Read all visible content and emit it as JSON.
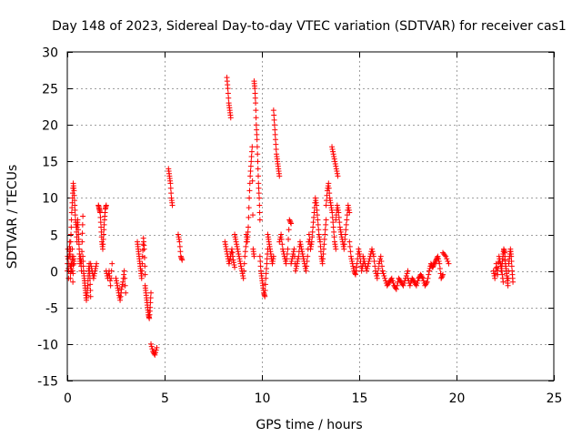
{
  "chart_data": {
    "type": "scatter",
    "title": "Day 148 of 2023, Sidereal Day-to-day VTEC variation (SDTVAR) for receiver cas1",
    "xlabel": "GPS time / hours",
    "ylabel": "SDTVAR / TECUs",
    "xlim": [
      0,
      25
    ],
    "ylim": [
      -15,
      30
    ],
    "xticks": [
      0,
      5,
      10,
      15,
      20,
      25
    ],
    "yticks": [
      -15,
      -10,
      -5,
      0,
      5,
      10,
      15,
      20,
      25,
      30
    ],
    "grid": true,
    "marker": "+",
    "series": [
      {
        "name": "SDTVAR",
        "color": "#ff0000",
        "segments": [
          {
            "x0": 0.0,
            "x1": 0.35,
            "y": [
              0,
              3,
              -1,
              2,
              4,
              -1,
              1,
              0,
              3,
              -1.5,
              2,
              1
            ]
          },
          {
            "x0": 0.15,
            "x1": 0.5,
            "y": [
              2,
              5,
              8,
              10,
              12,
              11,
              9,
              7,
              6,
              4
            ]
          },
          {
            "x0": 0.5,
            "x1": 0.8,
            "y": [
              6,
              7,
              5,
              3,
              1,
              2,
              0,
              4,
              7.5
            ]
          },
          {
            "x0": 0.8,
            "x1": 1.2,
            "y": [
              2,
              0,
              -1,
              -2,
              -3,
              -4,
              -3,
              -2,
              0,
              1,
              -1,
              -3.5
            ]
          },
          {
            "x0": 1.2,
            "x1": 1.5,
            "y": [
              1,
              0,
              -1,
              0,
              1
            ]
          },
          {
            "x0": 1.6,
            "x1": 2.0,
            "y": [
              9,
              8.5,
              8,
              6,
              4,
              3,
              5,
              7,
              8.5,
              9
            ]
          },
          {
            "x0": 2.0,
            "x1": 2.3,
            "y": [
              0,
              -1,
              0,
              -2,
              1
            ]
          },
          {
            "x0": 2.5,
            "x1": 3.0,
            "y": [
              -1,
              -2,
              -3,
              -4,
              -2.5,
              -1.5,
              0,
              -3
            ]
          },
          {
            "x0": 3.6,
            "x1": 4.0,
            "y": [
              4,
              3,
              2,
              1,
              0,
              -1,
              2,
              4.5,
              3,
              -0.5
            ]
          },
          {
            "x0": 4.0,
            "x1": 4.3,
            "y": [
              -2,
              -3,
              -4,
              -5,
              -6,
              -6.5,
              -5,
              -3
            ]
          },
          {
            "x0": 4.3,
            "x1": 4.6,
            "y": [
              -10,
              -11,
              -11.5,
              -10.5
            ]
          },
          {
            "x0": 5.2,
            "x1": 5.4,
            "y": [
              14,
              13,
              12,
              10,
              9
            ]
          },
          {
            "x0": 5.7,
            "x1": 5.9,
            "y": [
              5,
              4,
              2,
              1.5
            ]
          },
          {
            "x0": 8.1,
            "x1": 8.6,
            "y": [
              4,
              3,
              2,
              1,
              2,
              3,
              1.5,
              0.5
            ]
          },
          {
            "x0": 8.2,
            "x1": 8.4,
            "y": [
              26.5,
              25,
              23,
              22,
              21
            ]
          },
          {
            "x0": 8.6,
            "x1": 9.2,
            "y": [
              5,
              4,
              3,
              2,
              1,
              0,
              -1,
              2,
              4
            ]
          },
          {
            "x0": 9.2,
            "x1": 9.6,
            "y": [
              5,
              4,
              6,
              10,
              13,
              15,
              17,
              3,
              2
            ]
          },
          {
            "x0": 9.6,
            "x1": 9.9,
            "y": [
              26,
              25,
              23,
              20,
              18,
              15,
              12,
              10,
              7
            ]
          },
          {
            "x0": 9.9,
            "x1": 10.3,
            "y": [
              2,
              0,
              -1,
              -2,
              -3,
              -3.5,
              -1,
              1,
              3
            ]
          },
          {
            "x0": 10.3,
            "x1": 10.6,
            "y": [
              5,
              4,
              3,
              2,
              1,
              2
            ]
          },
          {
            "x0": 10.6,
            "x1": 10.9,
            "y": [
              22,
              20,
              18,
              16,
              15,
              14,
              13
            ]
          },
          {
            "x0": 10.9,
            "x1": 11.5,
            "y": [
              4,
              5,
              3,
              2,
              1,
              3,
              7,
              6.5
            ]
          },
          {
            "x0": 11.5,
            "x1": 12.5,
            "y": [
              1,
              2,
              3,
              0,
              1,
              2,
              4,
              3,
              2,
              1,
              0,
              2,
              5,
              3
            ]
          },
          {
            "x0": 12.5,
            "x1": 13.3,
            "y": [
              3,
              4,
              6,
              8,
              10,
              9,
              7,
              5,
              4,
              2,
              1,
              3,
              5,
              7
            ]
          },
          {
            "x0": 13.3,
            "x1": 13.8,
            "y": [
              9,
              11,
              12,
              10,
              9,
              8,
              6,
              4,
              3
            ]
          },
          {
            "x0": 13.6,
            "x1": 13.9,
            "y": [
              17,
              16,
              15,
              14,
              13
            ]
          },
          {
            "x0": 13.8,
            "x1": 14.5,
            "y": [
              7,
              9,
              8,
              6,
              5,
              4,
              3,
              5,
              7,
              9,
              8
            ]
          },
          {
            "x0": 14.5,
            "x1": 15.2,
            "y": [
              4,
              2,
              1,
              0,
              -0.5,
              1,
              3,
              2,
              0,
              1
            ]
          },
          {
            "x0": 15.2,
            "x1": 16.2,
            "y": [
              2,
              1,
              0,
              1,
              2,
              3,
              2,
              0,
              -1,
              1,
              2,
              0
            ]
          },
          {
            "x0": 16.2,
            "x1": 17.5,
            "y": [
              0,
              -1,
              -2,
              -1.5,
              -1,
              -2,
              -2.5,
              -1,
              -1.5,
              -2,
              -1,
              0
            ]
          },
          {
            "x0": 17.5,
            "x1": 18.6,
            "y": [
              -1,
              -2,
              -1,
              -1.5,
              -2,
              -1,
              -0.5,
              -1,
              -2,
              -1.5,
              0
            ]
          },
          {
            "x0": 18.6,
            "x1": 19.3,
            "y": [
              0,
              1,
              0.5,
              1,
              1.5,
              2,
              1,
              -1,
              -0.5
            ]
          },
          {
            "x0": 19.3,
            "x1": 19.6,
            "y": [
              2.5,
              2,
              1
            ]
          },
          {
            "x0": 21.9,
            "x1": 22.4,
            "y": [
              0,
              -1,
              1,
              -0.5,
              2,
              1,
              0,
              -1.5
            ]
          },
          {
            "x0": 22.3,
            "x1": 22.9,
            "y": [
              0,
              1,
              2,
              3,
              2.5,
              1,
              0,
              -1,
              -2,
              1,
              2,
              3,
              2,
              0,
              -1.5
            ]
          }
        ]
      }
    ]
  }
}
